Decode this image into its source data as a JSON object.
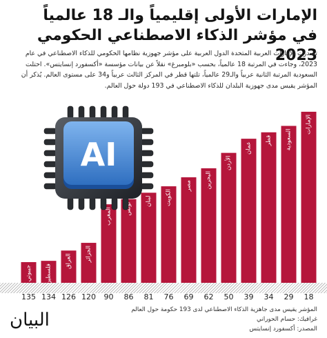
{
  "title": {
    "line1": "الإمارات الأولى إقليمياً والـ 18 عالمياً",
    "line2": "في مؤشر الذكاء الاصطناعي الحكومي 2023"
  },
  "intro_text": "تصدرت الإمارات العربية المتحدة الدول العربية على مؤشر جهوزية نظامها الحكومي للذكاء الاصطناعي في عام 2023، وجاءت في المرتبة 18 عالمياً، بحسب «بلومبرغ» نقلاً عن بيانات مؤسسة «أكسفورد إنسايتس». احتلت السعودية المرتبة الثانية عربياً والـ29 عالمياً، تلتها قطر في المركز الثالث عربياً و34 على مستوى العالم. يُذكر أن المؤشر يقيس مدى جهوزية البلدان للذكاء الاصطناعي في 193 دولة حول العالم.",
  "chip_label": "AI",
  "colors": {
    "bar": "#b5163b",
    "bar_text": "#ffffff",
    "value_text": "#222222",
    "chip_blue": "#4d8ed6"
  },
  "chart_data": {
    "type": "bar",
    "categories": [
      "الإمارات",
      "السعودية",
      "قطر",
      "عمان",
      "الأردن",
      "البحرين",
      "مصر",
      "الكويت",
      "لبنان",
      "تونس",
      "المغرب",
      "الجزائر",
      "العراق",
      "فلسطين",
      "جيبوتي"
    ],
    "values": [
      18,
      29,
      34,
      39,
      50,
      62,
      69,
      76,
      81,
      86,
      90,
      120,
      126,
      134,
      135
    ]
  },
  "footer": {
    "note": "المؤشر يقيس مدى جاهزية الذكاء الاصطناعي لدى 193 حكومة حول العالم",
    "credit": "غرافيك: حسام الحوراني",
    "source": "المصدر: أكسفورد إنسايتس"
  },
  "logo_text": "البيان"
}
